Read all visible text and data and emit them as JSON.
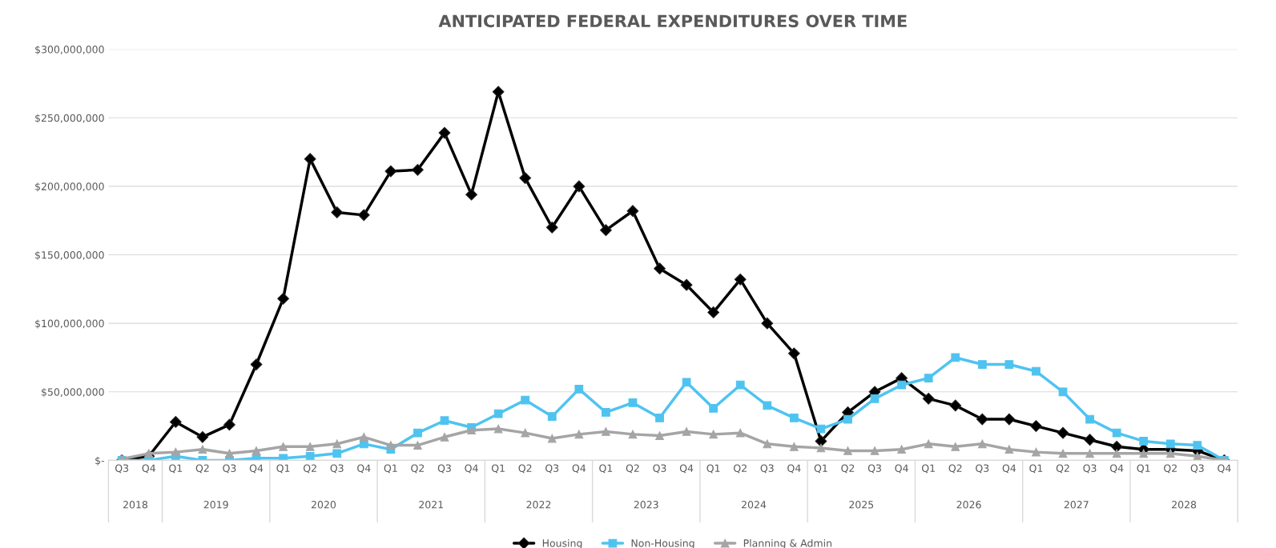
{
  "chart_data": {
    "type": "line",
    "title": "ANTICIPATED FEDERAL EXPENDITURES OVER TIME",
    "categories": [
      "Q3",
      "Q4",
      "Q1",
      "Q2",
      "Q3",
      "Q4",
      "Q1",
      "Q2",
      "Q3",
      "Q4",
      "Q1",
      "Q2",
      "Q3",
      "Q4",
      "Q1",
      "Q2",
      "Q3",
      "Q4",
      "Q1",
      "Q2",
      "Q3",
      "Q4",
      "Q1",
      "Q2",
      "Q3",
      "Q4",
      "Q1",
      "Q2",
      "Q3",
      "Q4",
      "Q1",
      "Q2",
      "Q3",
      "Q4",
      "Q1",
      "Q2",
      "Q3",
      "Q4",
      "Q1",
      "Q2",
      "Q3",
      "Q4"
    ],
    "annotations": [
      "2018",
      "2019",
      "2020",
      "2021",
      "2022",
      "2023",
      "2024",
      "2025",
      "2026",
      "2027",
      "2028"
    ],
    "series": [
      {
        "name": "Housing",
        "color": "#000000",
        "marker": "diamond",
        "values": [
          0,
          3000000,
          28000000,
          17000000,
          26000000,
          70000000,
          118000000,
          220000000,
          181000000,
          179000000,
          211000000,
          212000000,
          239000000,
          194000000,
          269000000,
          206000000,
          170000000,
          200000000,
          168000000,
          182000000,
          140000000,
          128000000,
          108000000,
          132000000,
          100000000,
          78000000,
          14000000,
          35000000,
          50000000,
          60000000,
          45000000,
          40000000,
          30000000,
          30000000,
          25000000,
          20000000,
          15000000,
          10000000,
          8000000,
          8000000,
          7000000,
          0
        ]
      },
      {
        "name": "Non-Housing",
        "color": "#4fc3f0",
        "marker": "square",
        "values": [
          0,
          0,
          3000000,
          0,
          0,
          1500000,
          1500000,
          3000000,
          5000000,
          12000000,
          8000000,
          20000000,
          29000000,
          24000000,
          34000000,
          44000000,
          32000000,
          52000000,
          35000000,
          42000000,
          31000000,
          57000000,
          38000000,
          55000000,
          40000000,
          31000000,
          23000000,
          30000000,
          45000000,
          55000000,
          60000000,
          75000000,
          70000000,
          70000000,
          65000000,
          50000000,
          30000000,
          20000000,
          14000000,
          12000000,
          11000000,
          0
        ]
      },
      {
        "name": "Planning & Admin",
        "color": "#a5a5a5",
        "marker": "triangle",
        "values": [
          1000000,
          5000000,
          6000000,
          8000000,
          5000000,
          7000000,
          10000000,
          10000000,
          12000000,
          17000000,
          11000000,
          11000000,
          17000000,
          22000000,
          23000000,
          20000000,
          16000000,
          19000000,
          21000000,
          19000000,
          18000000,
          21000000,
          19000000,
          20000000,
          12000000,
          10000000,
          9000000,
          7000000,
          7000000,
          8000000,
          12000000,
          10000000,
          12000000,
          8000000,
          6000000,
          5000000,
          5000000,
          5000000,
          5000000,
          5000000,
          3000000,
          0
        ]
      }
    ],
    "ylim": [
      0,
      300000000
    ],
    "yticks": [
      {
        "value": 0,
        "label": "$-"
      },
      {
        "value": 50000000,
        "label": "$50,000,000"
      },
      {
        "value": 100000000,
        "label": "$100,000,000"
      },
      {
        "value": 150000000,
        "label": "$150,000,000"
      },
      {
        "value": 200000000,
        "label": "$200,000,000"
      },
      {
        "value": 250000000,
        "label": "$250,000,000"
      },
      {
        "value": 300000000,
        "label": "$300,000,000"
      }
    ],
    "grid": "y",
    "legend": "bottom",
    "line_style": "solid"
  }
}
